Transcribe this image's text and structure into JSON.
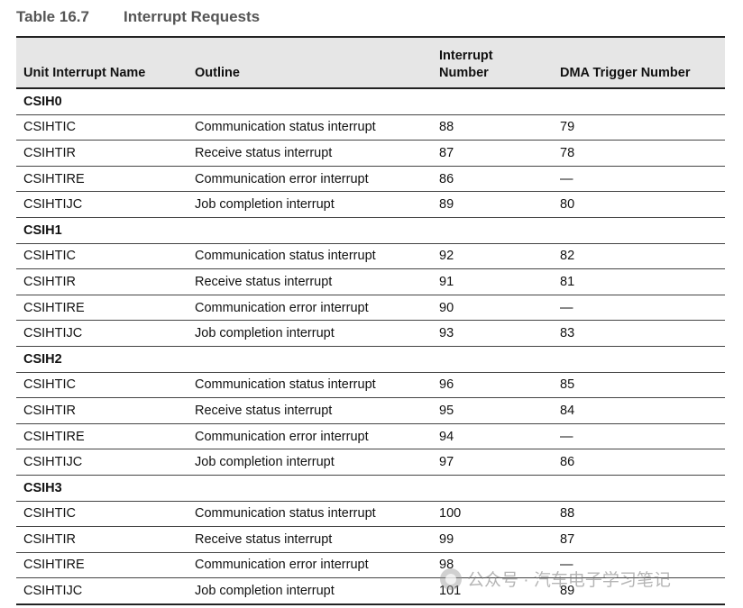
{
  "caption": {
    "number": "Table 16.7",
    "title": "Interrupt Requests"
  },
  "table": {
    "headers": [
      "Unit Interrupt Name",
      "Outline",
      "Interrupt Number",
      "DMA Trigger Number"
    ],
    "groups": [
      {
        "name": "CSIH0",
        "rows": [
          [
            "CSIHTIC",
            "Communication status interrupt",
            "88",
            "79"
          ],
          [
            "CSIHTIR",
            "Receive status interrupt",
            "87",
            "78"
          ],
          [
            "CSIHTIRE",
            "Communication error interrupt",
            "86",
            "—"
          ],
          [
            "CSIHTIJC",
            "Job completion interrupt",
            "89",
            "80"
          ]
        ]
      },
      {
        "name": "CSIH1",
        "rows": [
          [
            "CSIHTIC",
            "Communication status interrupt",
            "92",
            "82"
          ],
          [
            "CSIHTIR",
            "Receive status interrupt",
            "91",
            "81"
          ],
          [
            "CSIHTIRE",
            "Communication error interrupt",
            "90",
            "—"
          ],
          [
            "CSIHTIJC",
            "Job completion interrupt",
            "93",
            "83"
          ]
        ]
      },
      {
        "name": "CSIH2",
        "rows": [
          [
            "CSIHTIC",
            "Communication status interrupt",
            "96",
            "85"
          ],
          [
            "CSIHTIR",
            "Receive status interrupt",
            "95",
            "84"
          ],
          [
            "CSIHTIRE",
            "Communication error interrupt",
            "94",
            "—"
          ],
          [
            "CSIHTIJC",
            "Job completion interrupt",
            "97",
            "86"
          ]
        ]
      },
      {
        "name": "CSIH3",
        "rows": [
          [
            "CSIHTIC",
            "Communication status interrupt",
            "100",
            "88"
          ],
          [
            "CSIHTIR",
            "Receive status interrupt",
            "99",
            "87"
          ],
          [
            "CSIHTIRE",
            "Communication error interrupt",
            "98",
            "—"
          ],
          [
            "CSIHTIJC",
            "Job completion interrupt",
            "101",
            "89"
          ]
        ]
      }
    ]
  },
  "watermark": {
    "text": "公众号 · 汽车电子学习笔记",
    "icon": "wechat-icon"
  }
}
